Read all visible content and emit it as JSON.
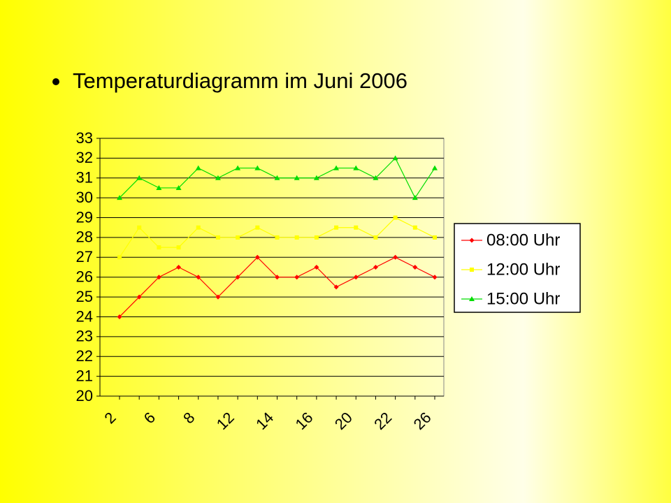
{
  "chart_data": {
    "type": "line",
    "title": "Temperaturdiagramm im Juni 2006",
    "categories": [
      "2",
      null,
      "6",
      null,
      "8",
      null,
      "12",
      null,
      "14",
      null,
      "16",
      null,
      "20",
      null,
      "22",
      null,
      "26"
    ],
    "series": [
      {
        "name": "08:00 Uhr",
        "color": "#ff0000",
        "marker": "diamond",
        "values": [
          24,
          25,
          26,
          26.5,
          26,
          25,
          26,
          27,
          26,
          26,
          26.5,
          25.5,
          26,
          26.5,
          27,
          26.5,
          26
        ]
      },
      {
        "name": "12:00 Uhr",
        "color": "#ffff00",
        "marker": "square",
        "values": [
          27,
          28.5,
          27.5,
          27.5,
          28.5,
          28,
          28,
          28.5,
          28,
          28,
          28,
          28.5,
          28.5,
          28,
          29,
          28.5,
          28
        ]
      },
      {
        "name": "15:00 Uhr",
        "color": "#00dd00",
        "marker": "triangle",
        "values": [
          30,
          31,
          30.5,
          30.5,
          31.5,
          31,
          31.5,
          31.5,
          31,
          31,
          31,
          31.5,
          31.5,
          31,
          32,
          30,
          31.5
        ]
      }
    ],
    "ylim": [
      20,
      33
    ],
    "yticks": [
      20,
      21,
      22,
      23,
      24,
      25,
      26,
      27,
      28,
      29,
      30,
      31,
      32,
      33
    ],
    "grid": true,
    "legend": "right"
  }
}
